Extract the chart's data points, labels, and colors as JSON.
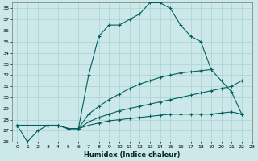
{
  "xlabel": "Humidex (Indice chaleur)",
  "background_color": "#cce8e8",
  "grid_color": "#aad0d0",
  "line_color": "#006060",
  "xlim": [
    -0.5,
    23
  ],
  "ylim": [
    26,
    38.5
  ],
  "yticks": [
    26,
    27,
    28,
    29,
    30,
    31,
    32,
    33,
    34,
    35,
    36,
    37,
    38
  ],
  "xticks": [
    0,
    1,
    2,
    3,
    4,
    5,
    6,
    7,
    8,
    9,
    10,
    11,
    12,
    13,
    14,
    15,
    16,
    17,
    18,
    19,
    20,
    21,
    22,
    23
  ],
  "curve1_x": [
    0,
    1,
    2,
    3,
    4,
    5,
    6,
    7,
    8,
    9,
    10,
    11,
    12,
    13,
    14,
    15,
    16,
    17,
    18,
    19
  ],
  "curve1_y": [
    27.5,
    26.0,
    27.0,
    27.5,
    27.5,
    27.2,
    27.2,
    32.0,
    35.5,
    36.5,
    36.5,
    37.0,
    37.5,
    38.5,
    38.5,
    38.0,
    36.5,
    35.5,
    35.0,
    32.5
  ],
  "curve2_x": [
    0,
    3,
    4,
    5,
    6,
    7,
    8,
    9,
    10,
    11,
    12,
    13,
    14,
    15,
    16,
    17,
    18,
    19,
    20,
    21,
    22
  ],
  "curve2_y": [
    27.5,
    27.5,
    27.5,
    27.2,
    27.2,
    28.5,
    29.2,
    29.8,
    30.3,
    30.8,
    31.2,
    31.5,
    31.8,
    32.0,
    32.2,
    32.3,
    32.4,
    32.5,
    31.5,
    30.5,
    28.5
  ],
  "curve3_x": [
    0,
    3,
    4,
    5,
    6,
    7,
    8,
    9,
    10,
    11,
    12,
    13,
    14,
    15,
    16,
    17,
    18,
    19,
    20,
    21,
    22
  ],
  "curve3_y": [
    27.5,
    27.5,
    27.5,
    27.2,
    27.2,
    27.8,
    28.2,
    28.5,
    28.8,
    29.0,
    29.2,
    29.4,
    29.6,
    29.8,
    30.0,
    30.2,
    30.4,
    30.6,
    30.8,
    31.0,
    31.5
  ],
  "curve4_x": [
    0,
    3,
    4,
    5,
    6,
    7,
    8,
    9,
    10,
    11,
    12,
    13,
    14,
    15,
    16,
    17,
    18,
    19,
    20,
    21,
    22
  ],
  "curve4_y": [
    27.5,
    27.5,
    27.5,
    27.2,
    27.2,
    27.5,
    27.7,
    27.9,
    28.0,
    28.1,
    28.2,
    28.3,
    28.4,
    28.5,
    28.5,
    28.5,
    28.5,
    28.5,
    28.6,
    28.7,
    28.5
  ]
}
